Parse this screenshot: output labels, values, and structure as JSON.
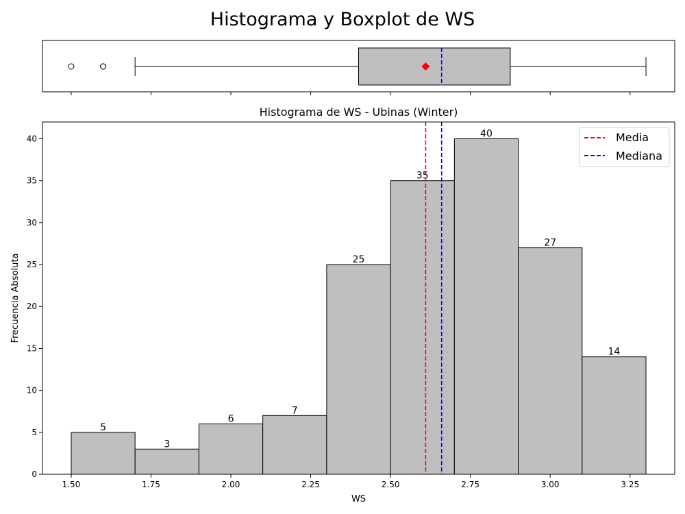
{
  "figure": {
    "suptitle": "Histograma y Boxplot de WS"
  },
  "chart_data": [
    {
      "type": "boxplot",
      "orientation": "horizontal",
      "variable": "WS",
      "whisker_low": 1.7,
      "q1": 2.4,
      "median": 2.66,
      "q3": 2.875,
      "whisker_high": 3.3,
      "mean": 2.61,
      "outliers": [
        1.5,
        1.6,
        1.6
      ],
      "box_color": "#bfbfbf",
      "mean_color": "#ff0000",
      "median_color": "#0000ff",
      "xlim": [
        1.41,
        3.39
      ]
    },
    {
      "type": "bar",
      "title": "Histograma de WS - Ubinas (Winter)",
      "xlabel": "WS",
      "ylabel": "Frecuencia Absoluta",
      "bin_edges": [
        1.5,
        1.7,
        1.9,
        2.1,
        2.3,
        2.5,
        2.7,
        2.9,
        3.1,
        3.3
      ],
      "values": [
        5,
        3,
        6,
        7,
        25,
        35,
        40,
        27,
        14
      ],
      "bar_color": "#bfbfbf",
      "xlim": [
        1.41,
        3.39
      ],
      "ylim": [
        0,
        42
      ],
      "xticks": [
        "1.50",
        "1.75",
        "2.00",
        "2.25",
        "2.50",
        "2.75",
        "3.00",
        "3.25"
      ],
      "yticks": [
        "0",
        "5",
        "10",
        "15",
        "20",
        "25",
        "30",
        "35",
        "40"
      ],
      "lines": [
        {
          "name": "Media",
          "x": 2.61,
          "color": "#ff0000",
          "style": "dashed"
        },
        {
          "name": "Mediana",
          "x": 2.66,
          "color": "#0000ff",
          "style": "dashed"
        }
      ],
      "legend": "top-right",
      "grid": false
    }
  ]
}
